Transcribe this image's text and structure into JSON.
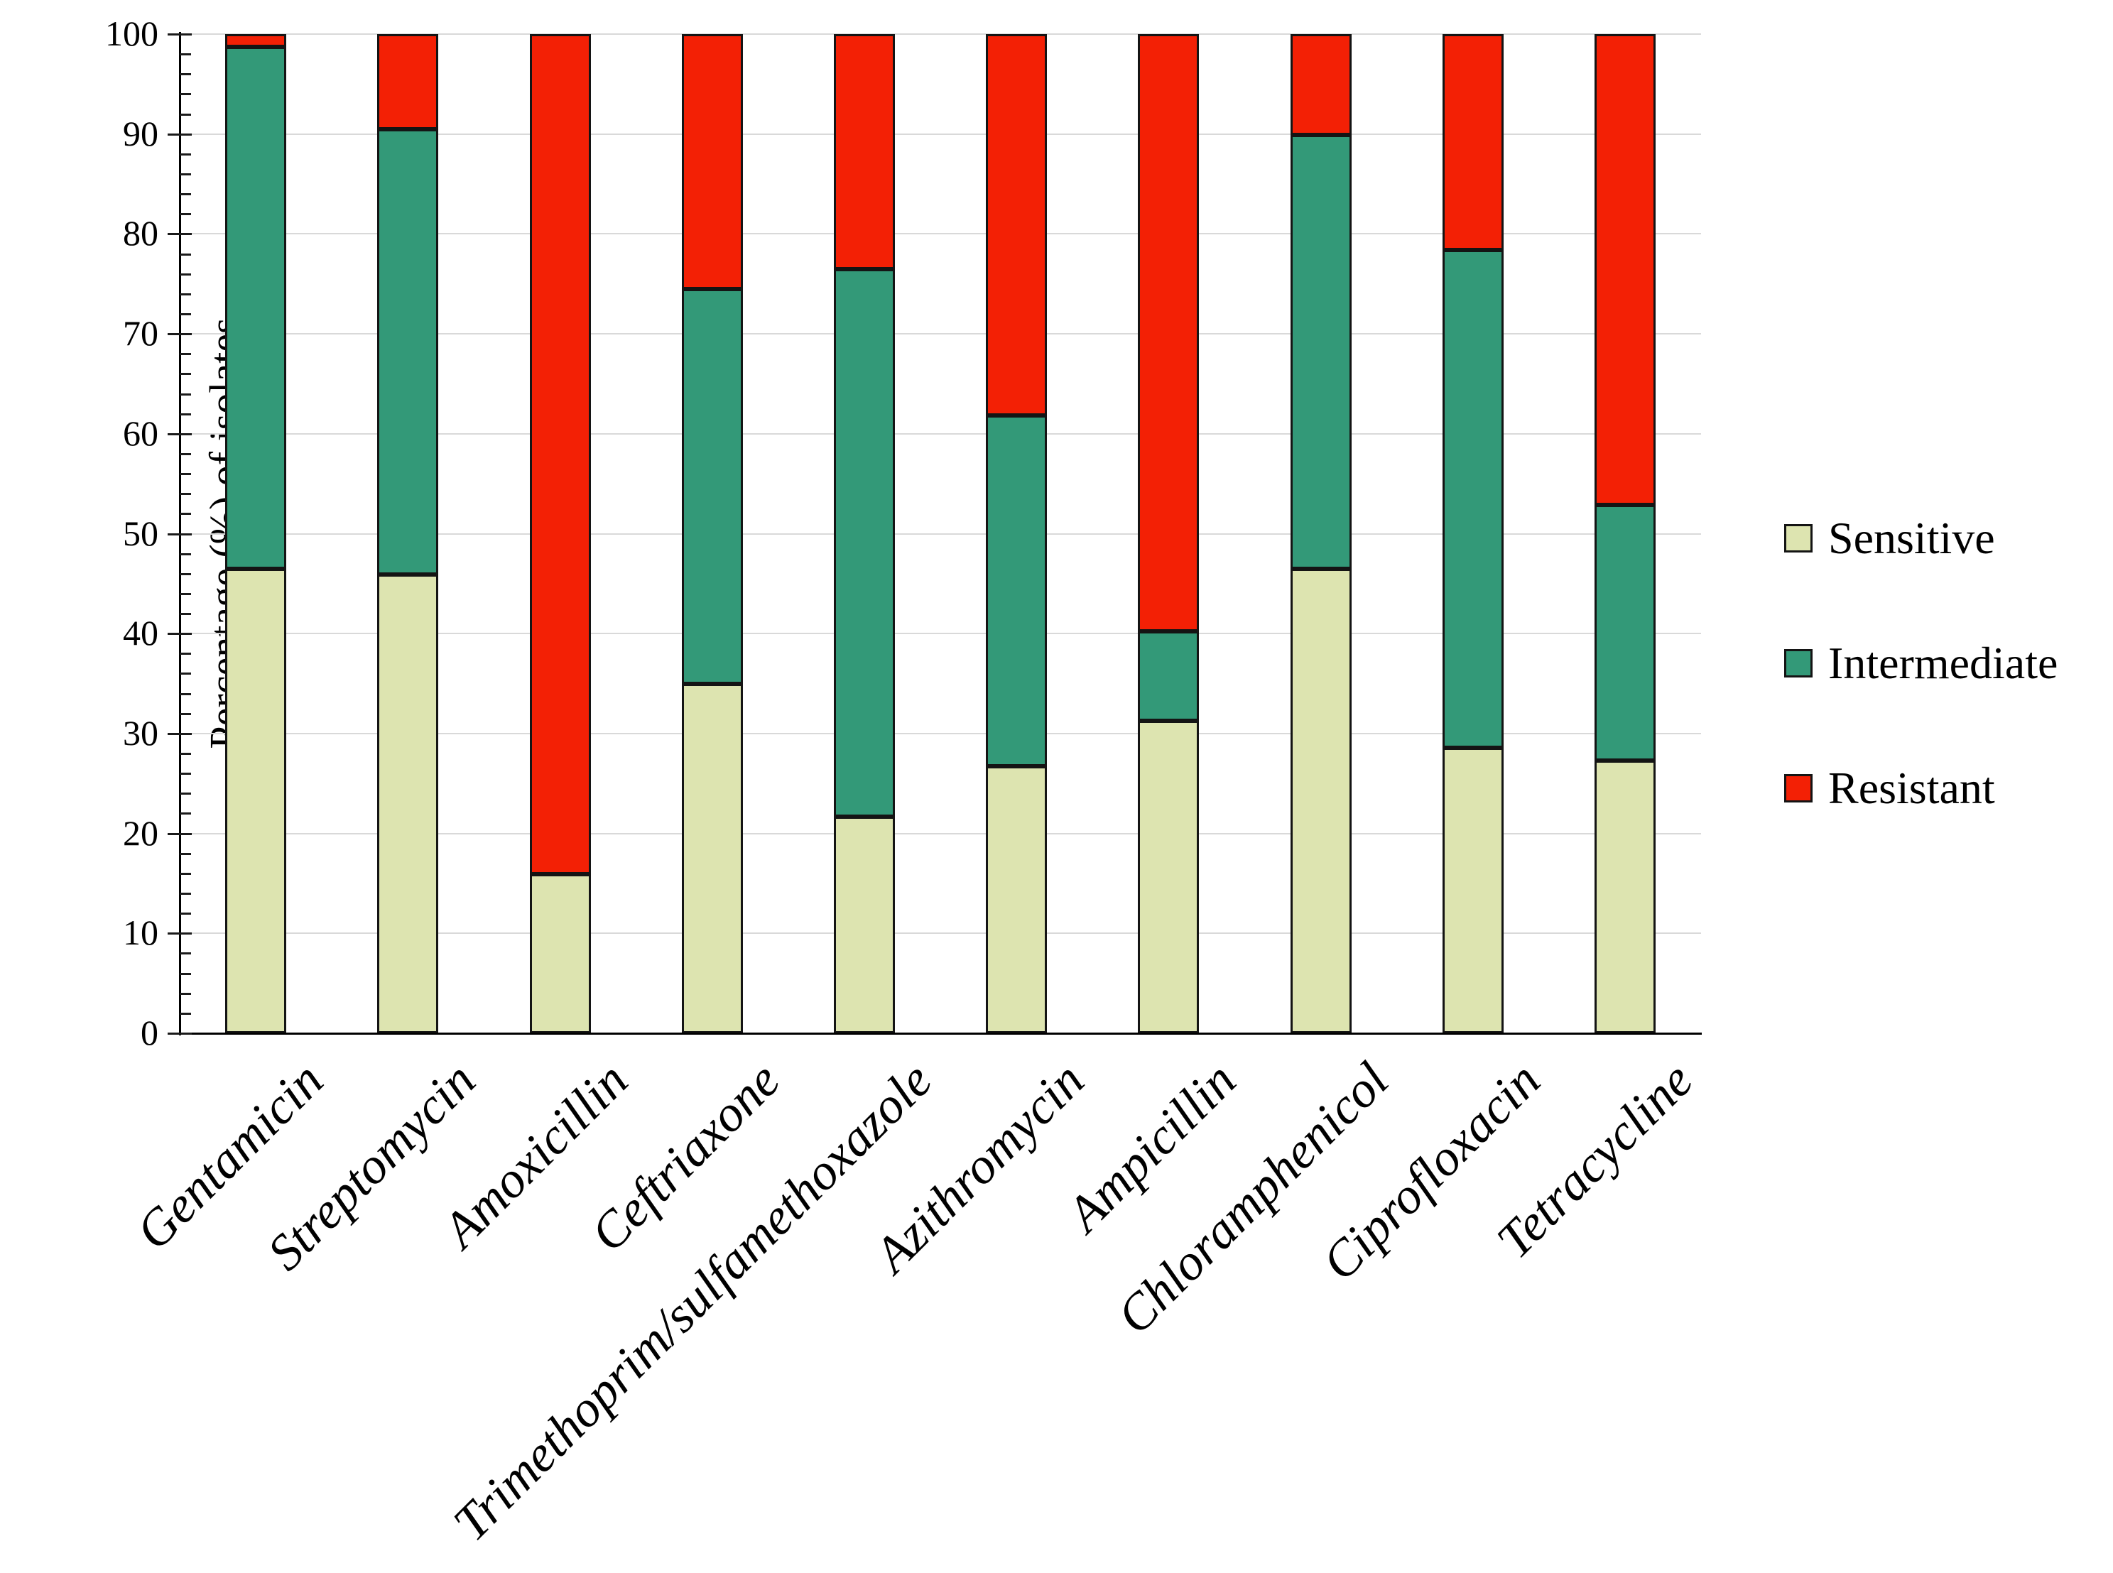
{
  "chart_data": {
    "type": "bar",
    "stacked": true,
    "orientation": "vertical",
    "title": "",
    "xlabel": "",
    "ylabel": "Percentage (%) of isolates",
    "ylim": [
      0,
      100
    ],
    "yticks": [
      0,
      10,
      20,
      30,
      40,
      50,
      60,
      70,
      80,
      90,
      100
    ],
    "minor_tick_step": 2,
    "grid": true,
    "legend_position": "right",
    "categories": [
      "Gentamicin",
      "Streptomycin",
      "Amoxicillin",
      "Ceftriaxone",
      "Trimethoprim/sulfamethoxazole",
      "Azithromycin",
      "Ampicillin",
      "Chloramphenicol",
      "Ciprofloxacin",
      "Tetracycline"
    ],
    "series": [
      {
        "name": "Sensitive",
        "color": "#dde4b0",
        "values": [
          46.5,
          45.9,
          15.9,
          35.0,
          21.7,
          26.7,
          31.3,
          46.5,
          28.6,
          27.3
        ]
      },
      {
        "name": "Intermediate",
        "color": "#339978",
        "values": [
          52.2,
          44.6,
          0.0,
          39.5,
          54.8,
          35.1,
          8.9,
          43.4,
          49.8,
          25.6
        ]
      },
      {
        "name": "Resistant",
        "color": "#f32005",
        "values": [
          1.3,
          9.5,
          84.1,
          25.5,
          23.5,
          38.2,
          59.8,
          10.1,
          21.6,
          47.1
        ]
      }
    ]
  },
  "colors": {
    "background": "#ffffff",
    "grid": "#d9d9d9",
    "axis": "#000000",
    "bar_border": "#141414",
    "text": "#000000"
  }
}
